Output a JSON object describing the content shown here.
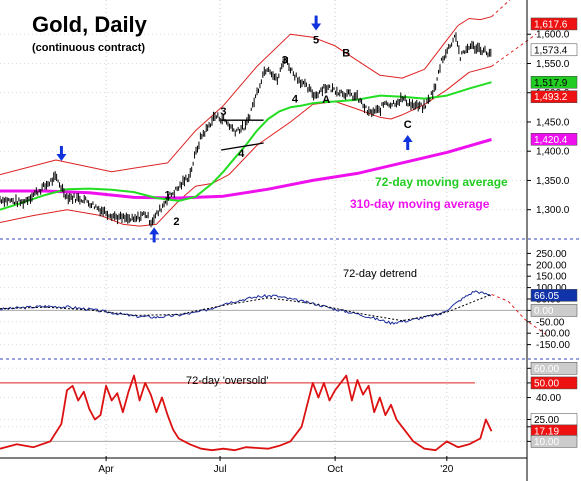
{
  "chart_data": [
    {
      "type": "line",
      "panel": "price",
      "title": "Gold, Daily",
      "subtitle": "(continuous contract)",
      "ylim": [
        1255,
        1650
      ],
      "yticks": [
        1300,
        1350,
        1400,
        1450,
        1500,
        1550,
        1600
      ],
      "ytick_labels": [
        "1,300.0",
        "1,350.0",
        "1,400.0",
        "1,450.0",
        "1,500.0",
        "1,550.0",
        "1,600.0"
      ],
      "xticks": [
        {
          "t": 95,
          "label": "Apr"
        },
        {
          "t": 197,
          "label": "Jul"
        },
        {
          "t": 300,
          "label": "Oct"
        },
        {
          "t": 400,
          "label": "'20"
        }
      ],
      "price": {
        "x": [
          0,
          20,
          40,
          50,
          60,
          75,
          90,
          105,
          120,
          130,
          135,
          142,
          150,
          160,
          170,
          175,
          180,
          186,
          192,
          200,
          210,
          220,
          230,
          236,
          240,
          248,
          255,
          262,
          268,
          275,
          282,
          290,
          300,
          310,
          320,
          330,
          340,
          345,
          350,
          360,
          370,
          380,
          390,
          395,
          400,
          408,
          412,
          420,
          430,
          440
        ],
        "y": [
          1318,
          1312,
          1340,
          1355,
          1322,
          1318,
          1300,
          1287,
          1282,
          1294,
          1279,
          1296,
          1320,
          1338,
          1360,
          1395,
          1425,
          1440,
          1460,
          1455,
          1435,
          1442,
          1500,
          1535,
          1545,
          1520,
          1560,
          1535,
          1522,
          1508,
          1495,
          1510,
          1505,
          1498,
          1492,
          1465,
          1470,
          1485,
          1480,
          1490,
          1478,
          1475,
          1510,
          1555,
          1570,
          1600,
          1560,
          1580,
          1575,
          1565
        ]
      },
      "upper_band": {
        "x": [
          0,
          50,
          100,
          150,
          175,
          200,
          230,
          260,
          280,
          300,
          320,
          340,
          360,
          380,
          400,
          410,
          420,
          430,
          440
        ],
        "y": [
          1360,
          1385,
          1365,
          1380,
          1435,
          1478,
          1545,
          1600,
          1595,
          1580,
          1555,
          1530,
          1525,
          1540,
          1590,
          1615,
          1627,
          1625,
          1630
        ]
      },
      "lower_band": {
        "x": [
          0,
          30,
          60,
          90,
          110,
          125,
          140,
          160,
          175,
          190,
          205,
          230,
          260,
          280,
          300,
          320,
          340,
          350,
          360,
          380,
          400,
          420,
          440
        ],
        "y": [
          1278,
          1290,
          1300,
          1290,
          1275,
          1272,
          1275,
          1315,
          1340,
          1345,
          1360,
          1410,
          1450,
          1480,
          1485,
          1472,
          1458,
          1455,
          1462,
          1480,
          1505,
          1535,
          1545
        ]
      },
      "band_projection": {
        "upper_x": [
          440,
          480
        ],
        "upper_y": [
          1630,
          1700
        ],
        "lower_x": [
          440,
          480
        ],
        "lower_y": [
          1545,
          1600
        ]
      },
      "ma72": {
        "name": "72-day moving average",
        "color": "#22dd22",
        "x": [
          0,
          20,
          40,
          60,
          80,
          100,
          120,
          140,
          160,
          175,
          190,
          200,
          210,
          220,
          230,
          240,
          250,
          260,
          270,
          280,
          290,
          300,
          320,
          340,
          360,
          380,
          400,
          420,
          440
        ],
        "y": [
          1300,
          1312,
          1325,
          1335,
          1336,
          1334,
          1330,
          1320,
          1315,
          1322,
          1345,
          1365,
          1388,
          1410,
          1435,
          1455,
          1468,
          1475,
          1478,
          1482,
          1484,
          1485,
          1488,
          1495,
          1493,
          1490,
          1495,
          1507,
          1518
        ]
      },
      "ma310": {
        "name": "310-day moving average",
        "color": "#ee11ee",
        "x": [
          0,
          40,
          80,
          120,
          160,
          200,
          240,
          280,
          320,
          360,
          400,
          440
        ],
        "y": [
          1332,
          1332,
          1329,
          1321,
          1320,
          1323,
          1335,
          1350,
          1362,
          1380,
          1398,
          1420
        ]
      },
      "trendlines": [
        {
          "x1": 198,
          "y1": 1453,
          "x2": 236,
          "y2": 1453
        },
        {
          "x1": 198,
          "y1": 1402,
          "x2": 236,
          "y2": 1414
        }
      ],
      "labels": [
        {
          "text": "1",
          "t": 150,
          "v": 1319
        },
        {
          "text": "2",
          "t": 158,
          "v": 1274
        },
        {
          "text": "3",
          "t": 200,
          "v": 1462
        },
        {
          "text": "4",
          "t": 216,
          "v": 1390
        },
        {
          "text": "3",
          "t": 255,
          "v": 1550
        },
        {
          "text": "4",
          "t": 264,
          "v": 1483
        },
        {
          "text": "5",
          "t": 283,
          "v": 1584
        },
        {
          "text": "A",
          "t": 292,
          "v": 1482
        },
        {
          "text": "B",
          "t": 310,
          "v": 1562
        },
        {
          "text": "C",
          "t": 365,
          "v": 1440
        }
      ],
      "arrows": [
        {
          "dir": "down",
          "t": 55,
          "v": 1385
        },
        {
          "dir": "up",
          "t": 138,
          "v": 1268
        },
        {
          "dir": "down",
          "t": 283,
          "v": 1608
        },
        {
          "dir": "up",
          "t": 365,
          "v": 1426
        }
      ],
      "tags": [
        {
          "label": "1,617.6",
          "v": 1617.6,
          "bg": "#ee1111",
          "fg": "#ffffff"
        },
        {
          "label": "1,573.4",
          "v": 1573.4,
          "bg": "#ffffff",
          "fg": "#000000"
        },
        {
          "label": "1,517.9",
          "v": 1517.9,
          "bg": "#22cc22",
          "fg": "#000000"
        },
        {
          "label": "1,493.2",
          "v": 1493.2,
          "bg": "#ee1111",
          "fg": "#ffffff"
        },
        {
          "label": "1,420.4",
          "v": 1420.4,
          "bg": "#ee11ee",
          "fg": "#ffffff"
        }
      ],
      "legend": [
        {
          "text": "72-day moving average",
          "color": "#22cc22"
        },
        {
          "text": "310-day moving average",
          "color": "#ee11ee"
        }
      ]
    },
    {
      "type": "line",
      "panel": "detrend",
      "title": "72-day detrend",
      "ylim": [
        -200,
        300
      ],
      "yticks": [
        250,
        200,
        150,
        100,
        50,
        0,
        -50,
        -100,
        -150
      ],
      "ytick_labels": [
        "250.00",
        "200.00",
        "150.00",
        "100.00",
        "50.00",
        "0.00",
        "-50.00",
        "-100.00",
        "-150.00"
      ],
      "series_raw": {
        "x": [
          0,
          20,
          40,
          60,
          80,
          100,
          120,
          140,
          160,
          175,
          190,
          200,
          215,
          230,
          245,
          255,
          270,
          285,
          300,
          310,
          320,
          335,
          350,
          365,
          380,
          395,
          405,
          415,
          425,
          440
        ],
        "y": [
          5,
          12,
          18,
          15,
          5,
          -10,
          -25,
          -30,
          -20,
          -10,
          10,
          30,
          45,
          60,
          65,
          55,
          40,
          25,
          5,
          -5,
          -15,
          -35,
          -55,
          -45,
          -30,
          -15,
          20,
          55,
          85,
          66
        ]
      },
      "series_smooth": {
        "x": [
          0,
          40,
          80,
          120,
          160,
          200,
          240,
          280,
          320,
          360,
          400,
          440,
          455,
          470,
          490
        ],
        "y": [
          8,
          14,
          2,
          -22,
          -18,
          22,
          55,
          30,
          -12,
          -45,
          -8,
          70,
          40,
          -40,
          -110
        ]
      },
      "tags": [
        {
          "label": "66.05",
          "v": 66.05,
          "bg": "#1133aa",
          "fg": "#ffffff"
        },
        {
          "label": "0.00",
          "v": 0,
          "bg": "#cccccc",
          "fg": "#ffffff"
        }
      ]
    },
    {
      "type": "line",
      "panel": "oversold",
      "title": "72-day 'oversold'",
      "ylim": [
        0,
        65
      ],
      "yticks": [
        60,
        50,
        40,
        25,
        20,
        10
      ],
      "ytick_labels": [
        "60.00",
        "",
        "40.00",
        "",
        "20.00",
        ""
      ],
      "upper_line": 50,
      "lower_line": 10,
      "series": {
        "x": [
          0,
          15,
          30,
          45,
          55,
          60,
          65,
          70,
          75,
          80,
          85,
          90,
          95,
          100,
          105,
          110,
          115,
          120,
          125,
          130,
          135,
          140,
          145,
          150,
          155,
          160,
          170,
          180,
          190,
          200,
          210,
          220,
          240,
          250,
          260,
          270,
          275,
          280,
          285,
          290,
          295,
          300,
          305,
          310,
          315,
          320,
          325,
          330,
          335,
          340,
          345,
          350,
          355,
          360,
          365,
          370,
          380,
          390,
          400,
          410,
          420,
          430,
          435,
          440
        ],
        "y": [
          5,
          8,
          6,
          10,
          22,
          45,
          48,
          38,
          44,
          32,
          25,
          28,
          48,
          38,
          43,
          30,
          44,
          55,
          38,
          50,
          42,
          30,
          40,
          28,
          18,
          12,
          8,
          5,
          4,
          5,
          4,
          6,
          5,
          7,
          10,
          20,
          35,
          50,
          40,
          50,
          38,
          45,
          50,
          55,
          38,
          52,
          42,
          48,
          30,
          40,
          28,
          35,
          25,
          20,
          15,
          10,
          5,
          4,
          10,
          6,
          8,
          12,
          25,
          17
        ]
      },
      "tags": [
        {
          "label": "60.00",
          "v": 60,
          "bg": "#cccccc",
          "fg": "#ffffff"
        },
        {
          "label": "50.00",
          "v": 50,
          "bg": "#ee1111",
          "fg": "#ffffff"
        },
        {
          "label": "25.00",
          "v": 25,
          "bg": "#ffffff",
          "fg": "#000000"
        },
        {
          "label": "17.19",
          "v": 17.19,
          "bg": "#ee1111",
          "fg": "#ffffff"
        },
        {
          "label": "10.00",
          "v": 10,
          "bg": "#cccccc",
          "fg": "#ffffff"
        }
      ]
    }
  ]
}
